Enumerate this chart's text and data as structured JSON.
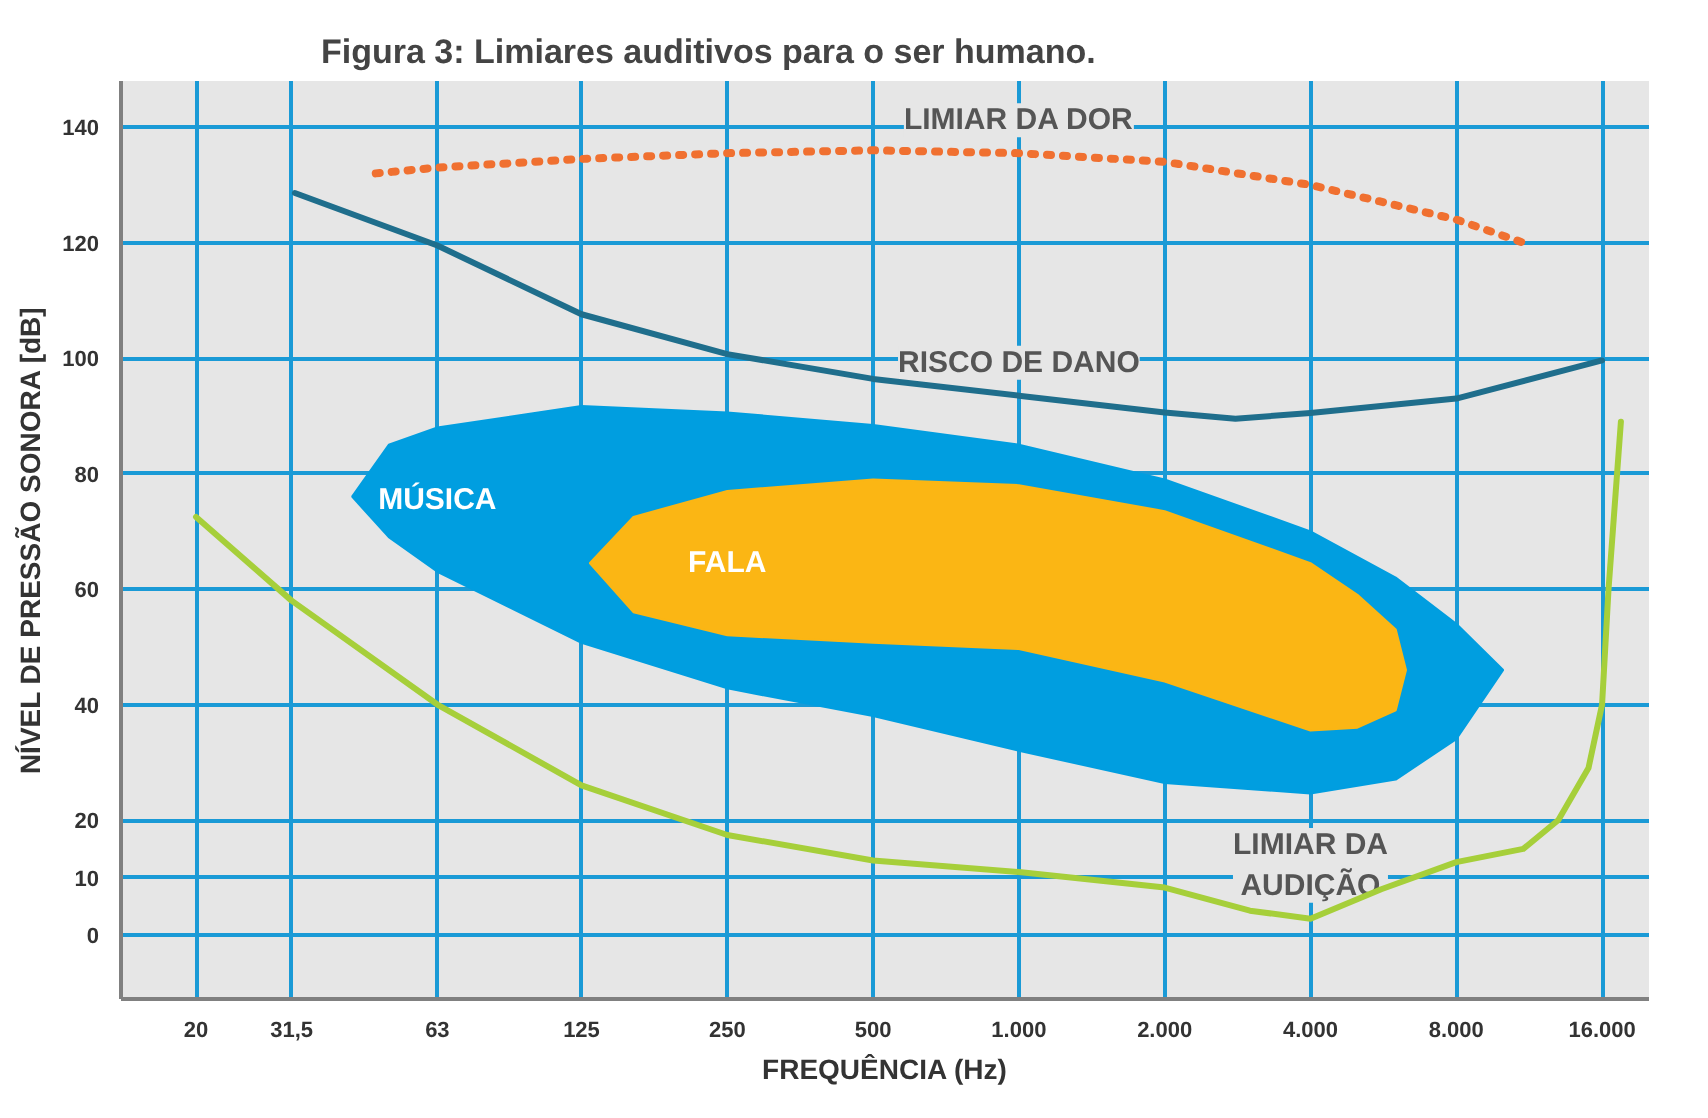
{
  "chart_data": {
    "type": "line",
    "title": "Figura 3: Limiares auditivos para o ser humano.",
    "xlabel": "FREQUÊNCIA (Hz)",
    "ylabel": "NÍVEL DE PRESSÃO SONORA [dB]",
    "log": "x",
    "grid": true,
    "xlim": [
      14,
      20000
    ],
    "ylim": [
      -11,
      148
    ],
    "xticks": [
      20,
      {
        "value": 31.5,
        "label": "31,5"
      },
      63,
      125,
      250,
      500,
      {
        "value": 1000,
        "label": "1.000"
      },
      {
        "value": 2000,
        "label": "2.000"
      },
      {
        "value": 4000,
        "label": "4.000"
      },
      {
        "value": 8000,
        "label": "8.000"
      },
      {
        "value": 16000,
        "label": "16.000"
      }
    ],
    "yticks": [
      0,
      10,
      20,
      40,
      60,
      80,
      100,
      120,
      140
    ],
    "series": [
      {
        "name": "MÚSICA",
        "type": "area",
        "color": "#009ee0",
        "x": [
          42,
          50,
          63,
          125,
          250,
          500,
          1000,
          2000,
          4000,
          6000,
          8000,
          10000,
          8000,
          6000,
          4000,
          2000,
          1000,
          500,
          250,
          125,
          63,
          50
        ],
        "values": [
          76,
          85,
          88,
          91.7,
          90.6,
          88.4,
          85,
          79,
          70,
          62,
          54,
          46,
          34,
          27,
          24.6,
          26.4,
          32,
          38,
          42.8,
          50.7,
          63,
          69
        ]
      },
      {
        "name": "FALA",
        "type": "area",
        "color": "#fbb614",
        "x": [
          130,
          160,
          250,
          500,
          1000,
          2000,
          4000,
          5000,
          6000,
          6300,
          6000,
          5000,
          4000,
          2000,
          1000,
          500,
          250,
          160
        ],
        "values": [
          64.5,
          72.5,
          77,
          79,
          78,
          73.5,
          64.5,
          59,
          53,
          46,
          39,
          36,
          35.5,
          44,
          49.6,
          50.7,
          52,
          56
        ]
      },
      {
        "name": "LIMIAR DA DOR",
        "type": "line",
        "color": "#f07030",
        "line_style": "dotted",
        "x": [
          47,
          63,
          125,
          250,
          500,
          1000,
          2000,
          4000,
          8000,
          11000
        ],
        "values": [
          132,
          133,
          134.5,
          135.5,
          136,
          135.5,
          134,
          130,
          124,
          120
        ]
      },
      {
        "name": "RISCO DE DANO",
        "color": "#1f6e8c",
        "line_style": "solid",
        "x": [
          32,
          63,
          125,
          250,
          500,
          1000,
          2000,
          2800,
          4000,
          8000,
          16000
        ],
        "values": [
          128.6,
          119.5,
          107.6,
          100.7,
          96.4,
          93.5,
          90.6,
          89.5,
          90.5,
          93,
          99.6
        ]
      },
      {
        "name": "LIMIAR DA\nAUDIÇÃO",
        "type": "line",
        "color": "#a6cf3a",
        "line_style": "solid",
        "x": [
          20,
          31.5,
          63,
          125,
          250,
          500,
          1000,
          2000,
          3000,
          4000,
          5600,
          8000,
          11000,
          13000,
          15000,
          16000,
          16500,
          17500
        ],
        "values": [
          72.5,
          58,
          40,
          26,
          17.4,
          13,
          11,
          8.3,
          4.3,
          2.9,
          8,
          12.7,
          15,
          20,
          29,
          40,
          60,
          89
        ]
      }
    ]
  }
}
